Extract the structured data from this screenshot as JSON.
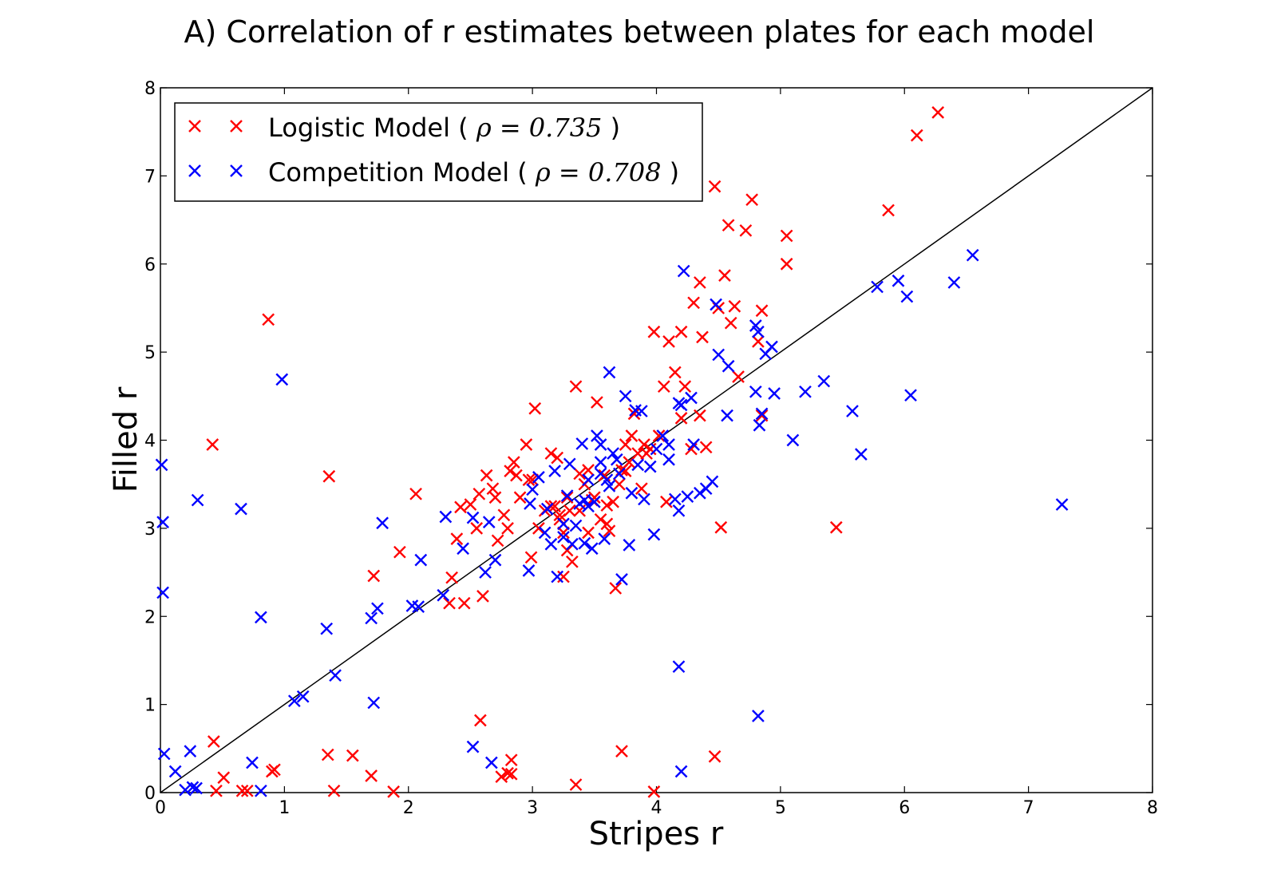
{
  "chart_data": {
    "type": "scatter",
    "title": "A) Correlation of r estimates between plates for each model",
    "xlabel": "Stripes r",
    "ylabel": "Filled r",
    "xlim": [
      0,
      8
    ],
    "ylim": [
      0,
      8
    ],
    "xticks": [
      "0",
      "1",
      "2",
      "3",
      "4",
      "5",
      "6",
      "7",
      "8"
    ],
    "yticks": [
      "0",
      "1",
      "2",
      "3",
      "4",
      "5",
      "6",
      "7",
      "8"
    ],
    "grid": false,
    "legend_position": "top-left",
    "reference_line": {
      "from": [
        0,
        0
      ],
      "to": [
        8,
        8
      ],
      "color": "#000000"
    },
    "series": [
      {
        "name": "Logistic Model",
        "rho_prefix": "(",
        "rho_math": "ρ = 0.735",
        "rho_suffix": ")",
        "color": "#ff0000",
        "marker": "x",
        "points": [
          [
            0.42,
            3.95
          ],
          [
            0.87,
            5.37
          ],
          [
            1.36,
            3.59
          ],
          [
            1.72,
            2.46
          ],
          [
            1.93,
            2.73
          ],
          [
            2.06,
            3.39
          ],
          [
            2.35,
            2.44
          ],
          [
            2.42,
            3.24
          ],
          [
            2.39,
            2.88
          ],
          [
            2.5,
            3.27
          ],
          [
            2.57,
            3.39
          ],
          [
            2.63,
            3.6
          ],
          [
            2.68,
            3.45
          ],
          [
            2.72,
            2.86
          ],
          [
            2.77,
            3.15
          ],
          [
            2.82,
            3.65
          ],
          [
            2.85,
            3.75
          ],
          [
            2.87,
            3.6
          ],
          [
            2.95,
            3.95
          ],
          [
            2.9,
            3.35
          ],
          [
            3.02,
            4.36
          ],
          [
            3.0,
            3.55
          ],
          [
            3.05,
            3.0
          ],
          [
            3.1,
            3.2
          ],
          [
            3.15,
            3.85
          ],
          [
            3.2,
            3.8
          ],
          [
            3.22,
            3.1
          ],
          [
            3.25,
            2.95
          ],
          [
            3.28,
            3.35
          ],
          [
            3.3,
            3.2
          ],
          [
            3.32,
            2.62
          ],
          [
            3.35,
            4.61
          ],
          [
            3.38,
            3.2
          ],
          [
            3.42,
            3.5
          ],
          [
            3.45,
            3.66
          ],
          [
            3.52,
            4.43
          ],
          [
            3.55,
            3.1
          ],
          [
            3.58,
            3.6
          ],
          [
            3.6,
            3.26
          ],
          [
            3.62,
            2.97
          ],
          [
            3.65,
            3.3
          ],
          [
            3.67,
            2.32
          ],
          [
            3.7,
            3.5
          ],
          [
            3.72,
            3.66
          ],
          [
            3.75,
            3.95
          ],
          [
            3.8,
            4.05
          ],
          [
            3.82,
            4.3
          ],
          [
            3.85,
            3.85
          ],
          [
            3.88,
            3.45
          ],
          [
            3.9,
            3.95
          ],
          [
            3.95,
            3.9
          ],
          [
            3.98,
            5.23
          ],
          [
            4.02,
            4.05
          ],
          [
            4.06,
            4.61
          ],
          [
            4.08,
            3.3
          ],
          [
            4.1,
            5.12
          ],
          [
            4.15,
            4.77
          ],
          [
            4.2,
            4.25
          ],
          [
            4.2,
            5.23
          ],
          [
            4.23,
            4.61
          ],
          [
            4.28,
            3.9
          ],
          [
            4.3,
            5.56
          ],
          [
            4.35,
            5.79
          ],
          [
            4.37,
            5.17
          ],
          [
            4.35,
            4.28
          ],
          [
            4.4,
            3.92
          ],
          [
            4.47,
            6.88
          ],
          [
            4.5,
            5.5
          ],
          [
            4.52,
            3.01
          ],
          [
            4.55,
            5.87
          ],
          [
            4.58,
            6.44
          ],
          [
            4.6,
            5.33
          ],
          [
            4.63,
            5.52
          ],
          [
            4.66,
            4.72
          ],
          [
            4.72,
            6.38
          ],
          [
            4.77,
            6.73
          ],
          [
            4.82,
            5.12
          ],
          [
            4.85,
            5.47
          ],
          [
            4.85,
            4.28
          ],
          [
            5.05,
            6.32
          ],
          [
            5.05,
            6.0
          ],
          [
            5.45,
            3.01
          ],
          [
            5.87,
            6.61
          ],
          [
            6.1,
            7.46
          ],
          [
            6.27,
            7.72
          ],
          [
            0.43,
            0.58
          ],
          [
            0.51,
            0.17
          ],
          [
            0.45,
            0.02
          ],
          [
            0.66,
            0.02
          ],
          [
            0.7,
            0.02
          ],
          [
            0.9,
            0.24
          ],
          [
            0.92,
            0.26
          ],
          [
            1.35,
            0.43
          ],
          [
            1.4,
            0.02
          ],
          [
            1.55,
            0.42
          ],
          [
            1.7,
            0.19
          ],
          [
            1.88,
            0.01
          ],
          [
            2.58,
            0.82
          ],
          [
            2.75,
            0.18
          ],
          [
            2.8,
            0.22
          ],
          [
            2.83,
            0.37
          ],
          [
            2.83,
            0.21
          ],
          [
            3.35,
            0.09
          ],
          [
            3.72,
            0.47
          ],
          [
            3.98,
            0.01
          ],
          [
            4.47,
            0.41
          ],
          [
            2.6,
            2.23
          ],
          [
            2.45,
            2.15
          ],
          [
            2.33,
            2.15
          ],
          [
            2.55,
            3.0
          ],
          [
            2.7,
            3.35
          ],
          [
            2.8,
            3.0
          ],
          [
            2.99,
            2.67
          ],
          [
            3.25,
            2.45
          ],
          [
            3.45,
            2.95
          ],
          [
            3.5,
            3.35
          ],
          [
            3.6,
            3.05
          ],
          [
            3.75,
            3.65
          ],
          [
            3.78,
            3.75
          ],
          [
            3.92,
            3.85
          ],
          [
            3.15,
            3.25
          ],
          [
            3.28,
            2.75
          ],
          [
            3.38,
            3.62
          ],
          [
            3.48,
            3.32
          ],
          [
            3.18,
            3.25
          ],
          [
            3.22,
            3.15
          ],
          [
            2.97,
            3.55
          ]
        ]
      },
      {
        "name": "Competition Model",
        "rho_prefix": "(",
        "rho_math": "ρ = 0.708",
        "rho_suffix": ")",
        "color": "#0000ff",
        "marker": "x",
        "points": [
          [
            0.01,
            3.72
          ],
          [
            0.02,
            3.07
          ],
          [
            0.02,
            2.27
          ],
          [
            0.3,
            3.32
          ],
          [
            0.65,
            3.22
          ],
          [
            0.81,
            1.99
          ],
          [
            0.98,
            4.69
          ],
          [
            1.34,
            1.86
          ],
          [
            1.7,
            1.98
          ],
          [
            1.75,
            2.09
          ],
          [
            1.79,
            3.06
          ],
          [
            2.03,
            2.12
          ],
          [
            2.08,
            2.11
          ],
          [
            2.1,
            2.64
          ],
          [
            2.28,
            2.24
          ],
          [
            2.3,
            3.13
          ],
          [
            2.44,
            2.77
          ],
          [
            2.52,
            3.12
          ],
          [
            2.62,
            2.5
          ],
          [
            2.65,
            3.07
          ],
          [
            2.7,
            2.64
          ],
          [
            2.97,
            2.52
          ],
          [
            2.98,
            3.28
          ],
          [
            3.0,
            3.44
          ],
          [
            3.05,
            3.58
          ],
          [
            3.1,
            2.95
          ],
          [
            3.15,
            2.82
          ],
          [
            3.18,
            3.65
          ],
          [
            3.2,
            2.45
          ],
          [
            3.25,
            2.9
          ],
          [
            3.28,
            3.37
          ],
          [
            3.3,
            3.73
          ],
          [
            3.35,
            3.03
          ],
          [
            3.4,
            3.96
          ],
          [
            3.42,
            2.83
          ],
          [
            3.45,
            3.25
          ],
          [
            3.5,
            3.3
          ],
          [
            3.52,
            4.05
          ],
          [
            3.55,
            3.75
          ],
          [
            3.6,
            3.55
          ],
          [
            3.62,
            4.77
          ],
          [
            3.65,
            3.85
          ],
          [
            3.7,
            3.62
          ],
          [
            3.72,
            2.42
          ],
          [
            3.75,
            4.5
          ],
          [
            3.8,
            3.4
          ],
          [
            3.83,
            4.34
          ],
          [
            3.88,
            4.33
          ],
          [
            3.95,
            3.7
          ],
          [
            4.0,
            3.9
          ],
          [
            4.05,
            4.05
          ],
          [
            4.1,
            3.95
          ],
          [
            4.15,
            3.33
          ],
          [
            4.18,
            4.42
          ],
          [
            4.2,
            4.4
          ],
          [
            4.25,
            3.36
          ],
          [
            4.28,
            4.48
          ],
          [
            4.3,
            3.95
          ],
          [
            4.35,
            3.4
          ],
          [
            4.4,
            3.45
          ],
          [
            4.45,
            3.53
          ],
          [
            4.48,
            5.54
          ],
          [
            4.5,
            4.97
          ],
          [
            4.57,
            4.28
          ],
          [
            4.58,
            4.84
          ],
          [
            4.8,
            5.3
          ],
          [
            4.8,
            4.55
          ],
          [
            4.82,
            5.23
          ],
          [
            4.85,
            4.3
          ],
          [
            4.83,
            4.17
          ],
          [
            4.88,
            4.98
          ],
          [
            4.93,
            5.06
          ],
          [
            4.95,
            4.53
          ],
          [
            5.1,
            4.0
          ],
          [
            5.2,
            4.55
          ],
          [
            5.35,
            4.67
          ],
          [
            5.58,
            4.33
          ],
          [
            5.65,
            3.84
          ],
          [
            5.78,
            5.74
          ],
          [
            5.95,
            5.81
          ],
          [
            6.02,
            5.63
          ],
          [
            6.05,
            4.51
          ],
          [
            6.4,
            5.79
          ],
          [
            6.55,
            6.1
          ],
          [
            7.27,
            3.27
          ],
          [
            4.22,
            5.92
          ],
          [
            0.03,
            0.44
          ],
          [
            0.12,
            0.24
          ],
          [
            0.2,
            0.03
          ],
          [
            0.24,
            0.47
          ],
          [
            0.26,
            0.06
          ],
          [
            0.29,
            0.05
          ],
          [
            0.74,
            0.34
          ],
          [
            0.81,
            0.02
          ],
          [
            1.08,
            1.04
          ],
          [
            1.15,
            1.09
          ],
          [
            1.41,
            1.33
          ],
          [
            1.72,
            1.02
          ],
          [
            2.52,
            0.52
          ],
          [
            2.67,
            0.34
          ],
          [
            4.18,
            1.43
          ],
          [
            4.2,
            0.24
          ],
          [
            4.82,
            0.87
          ],
          [
            3.98,
            2.93
          ],
          [
            3.78,
            2.81
          ],
          [
            3.58,
            2.88
          ],
          [
            3.48,
            2.77
          ],
          [
            3.42,
            3.32
          ],
          [
            3.38,
            3.28
          ],
          [
            3.55,
            3.62
          ],
          [
            3.68,
            3.78
          ],
          [
            3.32,
            2.82
          ],
          [
            3.25,
            3.05
          ],
          [
            3.62,
            3.48
          ],
          [
            3.12,
            3.22
          ],
          [
            3.45,
            3.55
          ],
          [
            3.55,
            3.95
          ],
          [
            3.85,
            3.72
          ],
          [
            4.1,
            3.78
          ],
          [
            4.18,
            3.2
          ],
          [
            3.9,
            3.33
          ]
        ]
      }
    ]
  }
}
